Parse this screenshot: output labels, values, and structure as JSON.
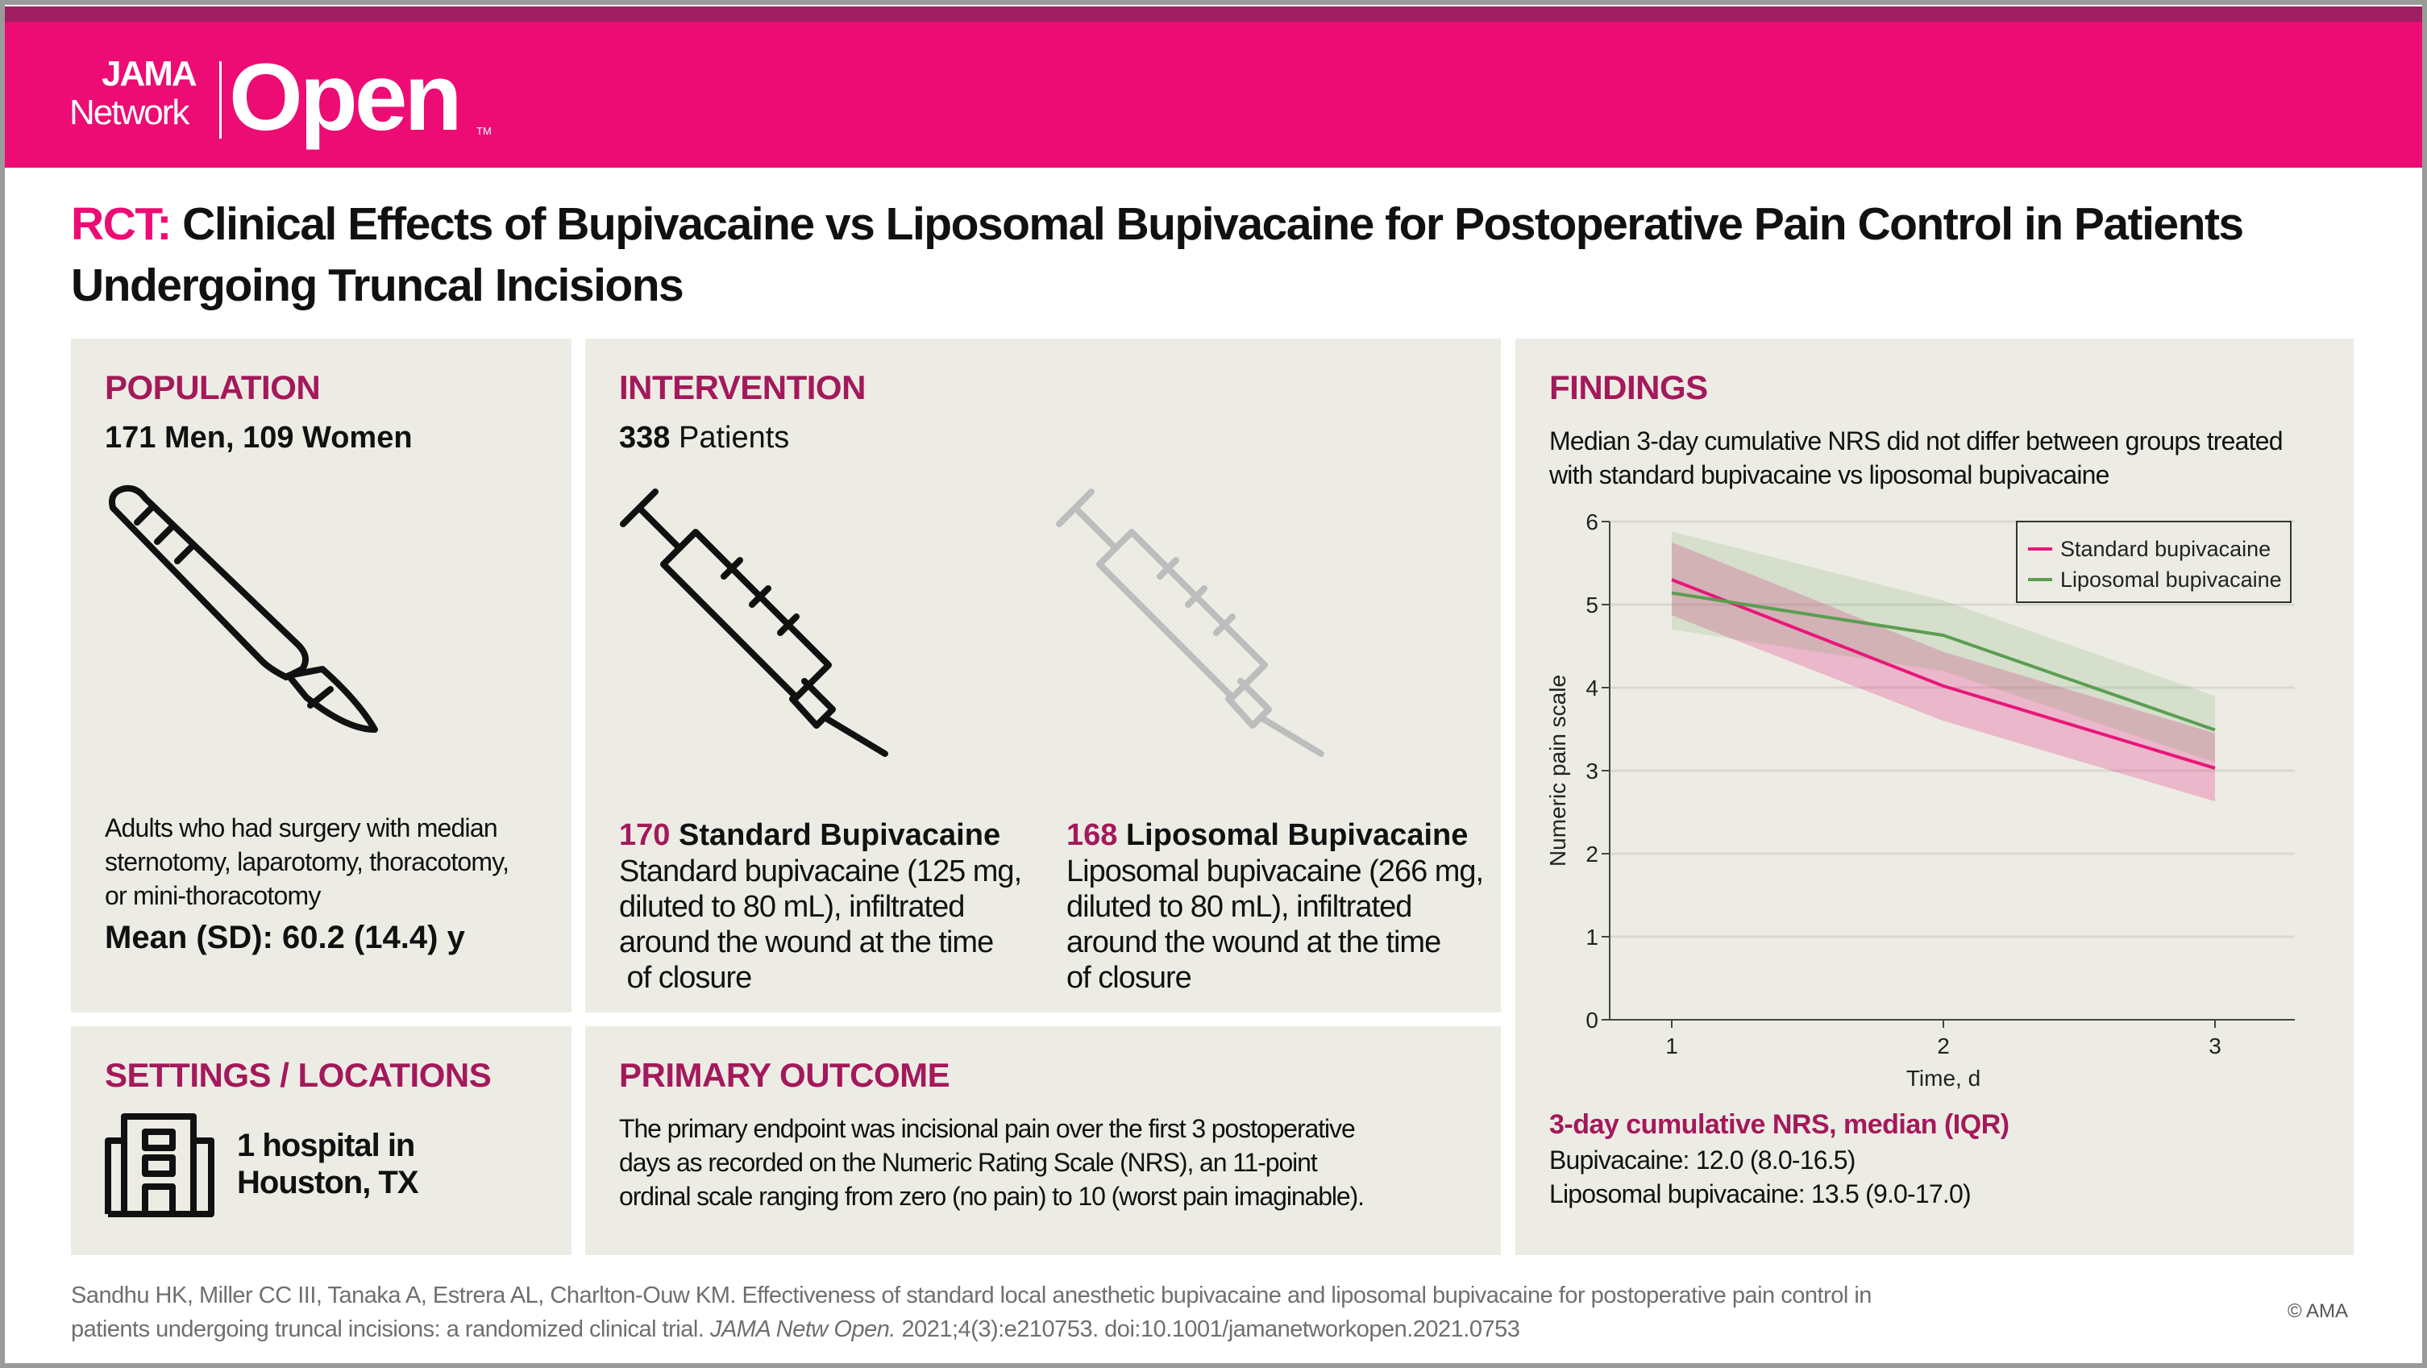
{
  "brand": {
    "jama": "JAMA",
    "network": "Network",
    "open": "Open",
    "tm": "TM",
    "colors": {
      "primary": "#ec0c73",
      "dark": "#a01e62",
      "heading": "#a3195b",
      "panel": "#edece4"
    }
  },
  "title": {
    "prefix": "RCT:",
    "text": "Clinical Effects of Bupivacaine vs Liposomal Bupivacaine for Postoperative Pain Control in Patients Undergoing Truncal Incisions"
  },
  "population": {
    "heading": "POPULATION",
    "summary": "171 Men, 109 Women",
    "icon": "scalpel-icon",
    "lines": [
      "Adults who had surgery with median",
      "sternotomy, laparotomy, thoracotomy,",
      "or mini-thoracotomy"
    ],
    "age": "Mean (SD): 60.2 (14.4) y"
  },
  "intervention": {
    "heading": "INTERVENTION",
    "total_count": "338",
    "total_label": "Patients",
    "icon": "syringe-icon",
    "arms": [
      {
        "count": "170",
        "name": "Standard Bupivacaine",
        "lines": [
          "Standard bupivacaine (125 mg,",
          "diluted to 80 mL), infiltrated",
          "around the wound at the time",
          " of closure"
        ]
      },
      {
        "count": "168",
        "name": "Liposomal Bupivacaine",
        "lines": [
          "Liposomal bupivacaine (266 mg,",
          "diluted to 80 mL), infiltrated",
          "around the wound at the time",
          "of closure"
        ]
      }
    ]
  },
  "settings": {
    "heading": "SETTINGS / LOCATIONS",
    "icon": "hospital-icon",
    "lines": [
      "1 hospital in",
      "Houston, TX"
    ]
  },
  "primary_outcome": {
    "heading": "PRIMARY OUTCOME",
    "lines": [
      "The primary endpoint was incisional pain over the first 3 postoperative",
      "days as recorded on the Numeric Rating Scale (NRS), an 11-point",
      "ordinal scale ranging from zero (no pain) to 10 (worst pain imaginable)."
    ]
  },
  "findings": {
    "heading": "FINDINGS",
    "lines": [
      "Median 3-day cumulative NRS did not differ between groups treated",
      "with standard bupivacaine vs liposomal bupivacaine"
    ],
    "result_heading": "3-day cumulative NRS, median (IQR)",
    "results": [
      "Bupivacaine: 12.0 (8.0-16.5)",
      "Liposomal bupivacaine: 13.5 (9.0-17.0)"
    ]
  },
  "chart_data": {
    "type": "line",
    "xlabel": "Time, d",
    "ylabel": "Numeric pain scale",
    "x": [
      1,
      2,
      3
    ],
    "xticks": [
      "1",
      "2",
      "3"
    ],
    "yticks": [
      "0",
      "1",
      "2",
      "3",
      "4",
      "5",
      "6"
    ],
    "ylim": [
      0,
      6
    ],
    "grid": true,
    "legend": "top-right",
    "series": [
      {
        "name": "Standard bupivacaine",
        "color": "#e8177a",
        "values": [
          5.3,
          4.02,
          3.03
        ],
        "band_low": [
          4.87,
          3.6,
          2.63
        ],
        "band_high": [
          5.75,
          4.43,
          3.45
        ]
      },
      {
        "name": "Liposomal bupivacaine",
        "color": "#5a9e50",
        "values": [
          5.14,
          4.63,
          3.49
        ],
        "band_low": [
          4.7,
          4.2,
          3.1
        ],
        "band_high": [
          5.88,
          5.05,
          3.9
        ]
      }
    ]
  },
  "citation": {
    "lines_before": "Sandhu HK, Miller CC III, Tanaka A, Estrera AL, Charlton-Ouw KM. Effectiveness of standard local anesthetic bupivacaine and liposomal bupivacaine for postoperative pain control in",
    "line2_start": "patients undergoing truncal incisions: a randomized clinical trial.",
    "journal": "JAMA Netw Open.",
    "line2_end": "2021;4(3):e210753. doi:10.1001/jamanetworkopen.2021.0753"
  },
  "copyright": "© AMA"
}
